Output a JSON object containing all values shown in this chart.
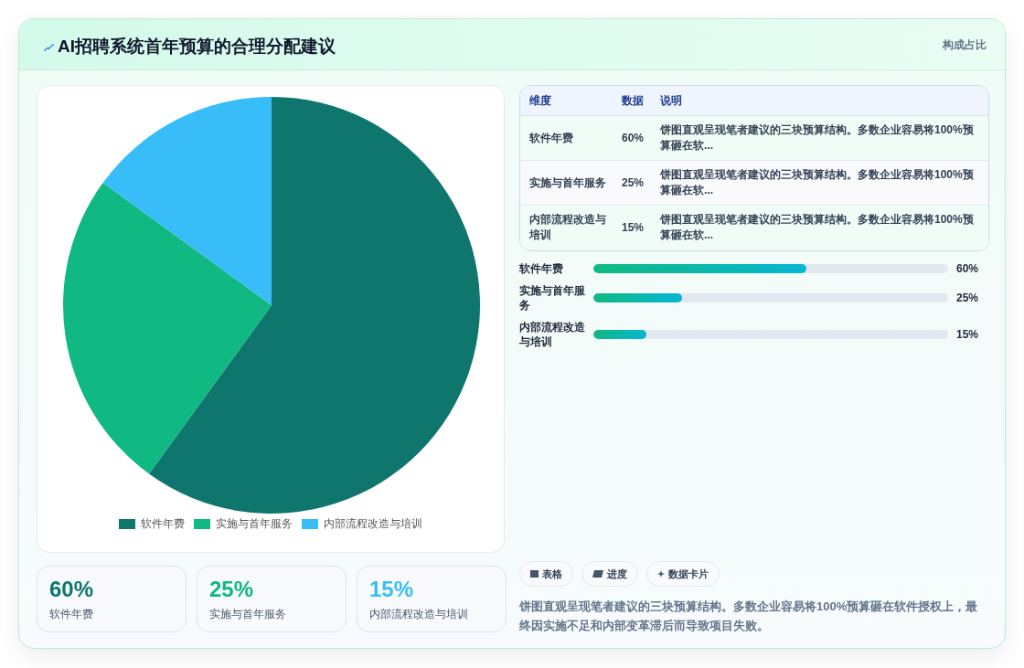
{
  "chart_data": {
    "type": "pie",
    "title": "AI招聘系统首年预算的合理分配建议",
    "categories": [
      "软件年费",
      "实施与首年服务",
      "内部流程改造与培训"
    ],
    "values": [
      60,
      25,
      15
    ],
    "colors": [
      "#0f766e",
      "#10b981",
      "#38bdf8"
    ],
    "legend": "bottom",
    "annotations": [
      "构成占比",
      "维度",
      "数据",
      "说明",
      "饼图直观呈现笔者建议的三块预算结构。多数企业容易将100%预算砸在软...",
      "表格",
      "进度",
      "数据卡片",
      "饼图直观呈现笔者建议的三块预算结构。多数企业容易将100%预算砸在软件授权上，最终因实施不足和内部变革滞后而导致项目失败。",
      "60%",
      "25%",
      "15%"
    ]
  }
}
